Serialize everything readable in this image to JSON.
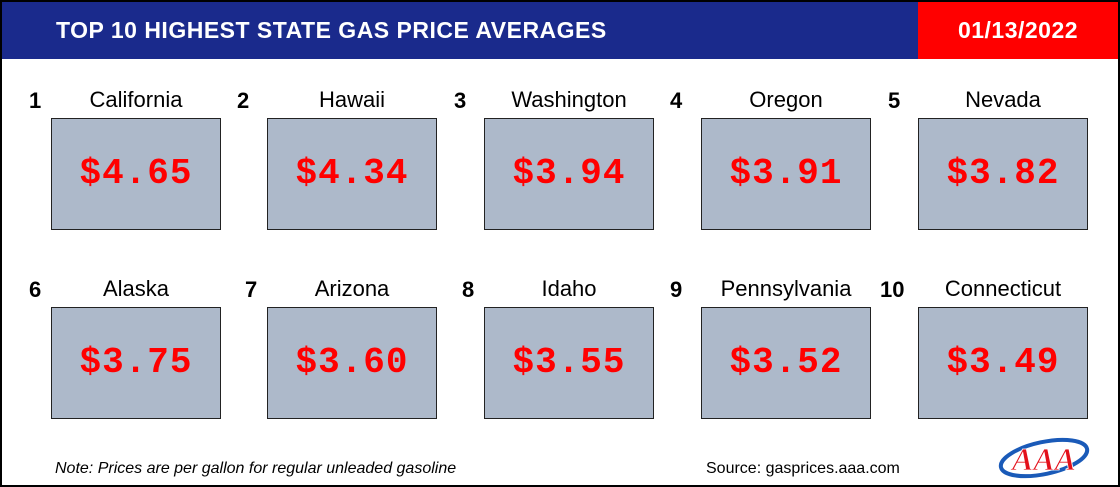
{
  "header": {
    "title": "TOP 10 HIGHEST STATE GAS PRICE AVERAGES",
    "date": "01/13/2022",
    "colors": {
      "title_bg": "#1a2a8c",
      "date_bg": "#ff0000"
    }
  },
  "items": [
    {
      "rank": "1",
      "state": "California",
      "price": "$4.65"
    },
    {
      "rank": "2",
      "state": "Hawaii",
      "price": "$4.34"
    },
    {
      "rank": "3",
      "state": "Washington",
      "price": "$3.94"
    },
    {
      "rank": "4",
      "state": "Oregon",
      "price": "$3.91"
    },
    {
      "rank": "5",
      "state": "Nevada",
      "price": "$3.82"
    },
    {
      "rank": "6",
      "state": "Alaska",
      "price": "$3.75"
    },
    {
      "rank": "7",
      "state": "Arizona",
      "price": "$3.60"
    },
    {
      "rank": "8",
      "state": "Idaho",
      "price": "$3.55"
    },
    {
      "rank": "9",
      "state": "Pennsylvania",
      "price": "$3.52"
    },
    {
      "rank": "10",
      "state": "Connecticut",
      "price": "$3.49"
    }
  ],
  "footer": {
    "note": "Note: Prices are per gallon for regular unleaded gasoline",
    "source": "Source: gasprices.aaa.com",
    "logo_text": "AAA"
  },
  "price_color": "#ff0000",
  "box_color": "#adb9ca"
}
